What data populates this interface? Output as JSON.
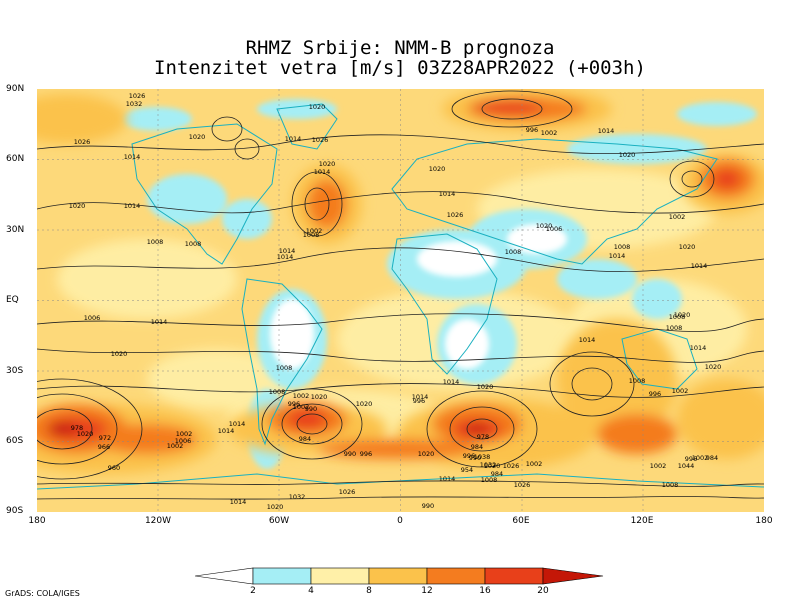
{
  "title_line1": "RHMZ Srbije: NMM-B prognoza",
  "title_line2": "Intenzitet vetra [m/s] 03Z28APR2022 (+003h)",
  "y_axis_labels": [
    "90N",
    "60N",
    "30N",
    "EQ",
    "30S",
    "60S",
    "90S"
  ],
  "x_axis_labels": [
    "180",
    "120W",
    "60W",
    "0",
    "60E",
    "120E",
    "180"
  ],
  "legend": {
    "ticks": [
      "2",
      "4",
      "8",
      "12",
      "16",
      "20"
    ],
    "colors": [
      "#ffffff",
      "#a5eef5",
      "#fff0a8",
      "#fbc24b",
      "#f47c1f",
      "#e8401a",
      "#c41707"
    ]
  },
  "pressure_labels": [
    "1026",
    "1032",
    "1020",
    "1026",
    "1014",
    "1020",
    "1014",
    "1026",
    "1020",
    "1014",
    "1020",
    "1014",
    "1008",
    "1008",
    "1014",
    "1002",
    "1008",
    "1014",
    "1020",
    "1014",
    "1026",
    "1008",
    "996",
    "1002",
    "1014",
    "1020",
    "1008",
    "1002",
    "1020",
    "1014",
    "1020",
    "1006",
    "1014",
    "1008",
    "1006",
    "1014",
    "1020",
    "1020",
    "1008",
    "1014",
    "1014",
    "1008",
    "1020",
    "1014",
    "1008",
    "1014",
    "1020",
    "1008",
    "1002",
    "996",
    "1014",
    "1020",
    "1026",
    "1008",
    "1002",
    "1020",
    "996",
    "1002",
    "990",
    "984",
    "1020",
    "1014",
    "1014",
    "1020",
    "978",
    "972",
    "966",
    "960",
    "954",
    "984",
    "1002",
    "1006",
    "1002",
    "996",
    "1020",
    "990",
    "996",
    "984",
    "978",
    "990",
    "1002",
    "1026",
    "1032",
    "1038",
    "1044",
    "996",
    "1002",
    "984",
    "1002",
    "1008",
    "1026",
    "1032",
    "1020",
    "1014",
    "990",
    "996"
  ],
  "credit": "GrADS: COLA/IGES"
}
